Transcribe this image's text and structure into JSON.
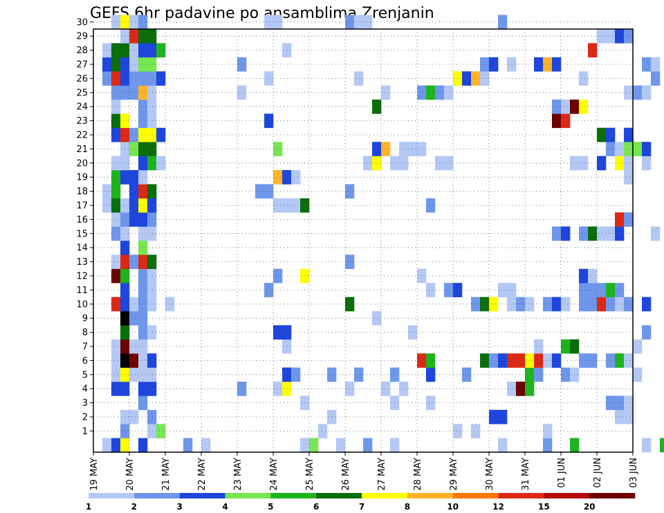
{
  "chart_data": {
    "type": "heatmap",
    "title": "GEFS 6hr padavine po ansamblima Zrenjanin",
    "x_ticks": [
      "19 MAY",
      "20 MAY",
      "21 MAY",
      "22 MAY",
      "23 MAY",
      "24 MAY",
      "25 MAY",
      "26 MAY",
      "27 MAY",
      "28 MAY",
      "29 MAY",
      "30 MAY",
      "31 MAY",
      "01 JUN",
      "02 JUN",
      "03 JUN"
    ],
    "x_steps_per_day": 4,
    "y_ticks": [
      1,
      2,
      3,
      4,
      5,
      6,
      7,
      8,
      9,
      10,
      11,
      12,
      13,
      14,
      15,
      16,
      17,
      18,
      19,
      20,
      21,
      22,
      23,
      24,
      25,
      26,
      27,
      28,
      29,
      30
    ],
    "ylim": [
      0,
      30
    ],
    "grid": true,
    "legend": {
      "position": "bottom",
      "labels": [
        "1",
        "2",
        "3",
        "4",
        "5",
        "6",
        "7",
        "8",
        "10",
        "12",
        "15",
        "20"
      ],
      "colors": [
        "#b4c8f5",
        "#6e96eb",
        "#1e46dc",
        "#78e650",
        "#1eb41e",
        "#0a6e0a",
        "#ffff00",
        "#ffb428",
        "#ff7800",
        "#dc2814",
        "#b40a0a",
        "#6e0000"
      ]
    },
    "cells": [
      [
        1,
        0,
        1
      ],
      [
        2,
        0,
        3
      ],
      [
        3,
        0,
        7
      ],
      [
        5,
        0,
        3
      ],
      [
        10,
        0,
        2
      ],
      [
        12,
        0,
        1
      ],
      [
        23,
        0,
        1
      ],
      [
        24,
        0,
        4
      ],
      [
        27,
        0,
        1
      ],
      [
        30,
        0,
        2
      ],
      [
        33,
        0,
        1
      ],
      [
        45,
        0,
        1
      ],
      [
        50,
        0,
        2
      ],
      [
        53,
        0,
        5
      ],
      [
        61,
        0,
        1
      ],
      [
        63,
        0,
        5
      ],
      [
        3,
        1,
        2
      ],
      [
        6,
        1,
        1
      ],
      [
        6,
        1,
        1
      ],
      [
        6,
        1,
        1
      ],
      [
        7,
        1,
        4
      ],
      [
        6,
        1,
        1
      ],
      [
        25,
        1,
        1
      ],
      [
        40,
        1,
        1
      ],
      [
        42,
        1,
        1
      ],
      [
        50,
        1,
        1
      ],
      [
        3,
        2,
        1
      ],
      [
        4,
        2,
        1
      ],
      [
        6,
        2,
        2
      ],
      [
        26,
        2,
        1
      ],
      [
        44,
        2,
        3
      ],
      [
        45,
        2,
        3
      ],
      [
        45,
        2,
        3
      ],
      [
        44,
        2,
        3
      ],
      [
        45,
        2,
        3
      ],
      [
        45,
        2,
        3
      ],
      [
        45,
        2,
        3
      ],
      [
        45,
        2,
        3
      ],
      [
        45,
        2,
        3
      ],
      [
        45,
        2,
        3
      ],
      [
        45,
        2,
        3
      ],
      [
        45,
        2,
        3
      ],
      [
        45,
        2,
        3
      ],
      [
        45,
        2,
        3
      ],
      [
        45,
        2,
        3
      ],
      [
        45,
        2,
        3
      ],
      [
        45,
        2,
        3
      ],
      [
        45,
        2,
        3
      ],
      [
        45,
        2,
        3
      ],
      [
        45,
        2,
        3
      ],
      [
        45,
        2,
        3
      ],
      [
        45,
        2,
        3
      ],
      [
        45,
        2,
        3
      ],
      [
        45,
        2,
        3
      ],
      [
        45,
        2,
        3
      ],
      [
        45,
        2,
        3
      ],
      [
        45,
        2,
        3
      ],
      [
        45,
        2,
        3
      ],
      [
        45,
        2,
        3
      ],
      [
        45,
        2,
        3
      ],
      [
        58,
        2,
        1
      ],
      [
        59,
        2,
        1
      ],
      [
        5,
        3,
        2
      ],
      [
        23,
        3,
        1
      ],
      [
        33,
        3,
        1
      ],
      [
        37,
        3,
        1
      ],
      [
        57,
        3,
        2
      ],
      [
        58,
        3,
        2
      ],
      [
        59,
        3,
        1
      ],
      [
        2,
        4,
        3
      ],
      [
        3,
        4,
        3
      ],
      [
        5,
        4,
        3
      ],
      [
        6,
        4,
        3
      ],
      [
        16,
        4,
        2
      ],
      [
        20,
        4,
        1
      ],
      [
        21,
        4,
        7
      ],
      [
        28,
        4,
        1
      ],
      [
        32,
        4,
        1
      ],
      [
        34,
        4,
        1
      ],
      [
        46,
        4,
        1
      ],
      [
        47,
        4,
        12
      ],
      [
        48,
        4,
        5
      ],
      [
        2,
        5,
        1
      ],
      [
        3,
        5,
        7
      ],
      [
        4,
        5,
        1
      ],
      [
        5,
        5,
        1
      ],
      [
        6,
        5,
        1
      ],
      [
        21,
        5,
        3
      ],
      [
        22,
        5,
        2
      ],
      [
        26,
        5,
        2
      ],
      [
        29,
        5,
        2
      ],
      [
        33,
        5,
        2
      ],
      [
        37,
        5,
        3
      ],
      [
        41,
        5,
        2
      ],
      [
        48,
        5,
        5
      ],
      [
        49,
        5,
        2
      ],
      [
        52,
        5,
        2
      ],
      [
        53,
        5,
        1
      ],
      [
        60,
        5,
        1
      ],
      [
        2,
        6,
        1
      ],
      [
        3,
        6,
        15
      ],
      [
        4,
        6,
        12
      ],
      [
        5,
        6,
        1
      ],
      [
        6,
        6,
        3
      ],
      [
        36,
        6,
        10
      ],
      [
        37,
        6,
        5
      ],
      [
        43,
        6,
        6
      ],
      [
        44,
        6,
        2
      ],
      [
        45,
        6,
        3
      ],
      [
        46,
        6,
        10
      ],
      [
        47,
        6,
        10
      ],
      [
        48,
        6,
        7
      ],
      [
        49,
        6,
        10
      ],
      [
        50,
        6,
        1
      ],
      [
        51,
        6,
        3
      ],
      [
        54,
        6,
        2
      ],
      [
        55,
        6,
        2
      ],
      [
        57,
        6,
        2
      ],
      [
        58,
        6,
        5
      ],
      [
        59,
        6,
        1
      ],
      [
        2,
        7,
        1
      ],
      [
        3,
        7,
        12
      ],
      [
        4,
        7,
        1
      ],
      [
        5,
        7,
        1
      ],
      [
        21,
        7,
        1
      ],
      [
        49,
        7,
        1
      ],
      [
        52,
        7,
        5
      ],
      [
        53,
        7,
        6
      ],
      [
        60,
        7,
        1
      ],
      [
        3,
        8,
        6
      ],
      [
        5,
        8,
        2
      ],
      [
        6,
        8,
        1
      ],
      [
        20,
        8,
        3
      ],
      [
        21,
        8,
        3
      ],
      [
        35,
        8,
        1
      ],
      [
        61,
        8,
        2
      ],
      [
        3,
        9,
        20
      ],
      [
        4,
        9,
        2
      ],
      [
        5,
        9,
        2
      ],
      [
        31,
        9,
        1
      ],
      [
        2,
        10,
        10
      ],
      [
        3,
        10,
        3
      ],
      [
        4,
        10,
        1
      ],
      [
        5,
        10,
        2
      ],
      [
        6,
        10,
        1
      ],
      [
        8,
        10,
        1
      ],
      [
        28,
        10,
        6
      ],
      [
        42,
        10,
        2
      ],
      [
        43,
        10,
        6
      ],
      [
        44,
        10,
        7
      ],
      [
        46,
        10,
        1
      ],
      [
        47,
        10,
        2
      ],
      [
        48,
        10,
        1
      ],
      [
        50,
        10,
        2
      ],
      [
        51,
        10,
        3
      ],
      [
        52,
        10,
        1
      ],
      [
        54,
        10,
        2
      ],
      [
        55,
        10,
        2
      ],
      [
        56,
        10,
        10
      ],
      [
        57,
        10,
        2
      ],
      [
        58,
        10,
        1
      ],
      [
        59,
        10,
        2
      ],
      [
        61,
        10,
        3
      ],
      [
        3,
        11,
        3
      ],
      [
        5,
        11,
        2
      ],
      [
        6,
        11,
        1
      ],
      [
        19,
        11,
        2
      ],
      [
        37,
        11,
        1
      ],
      [
        39,
        11,
        2
      ],
      [
        40,
        11,
        3
      ],
      [
        45,
        11,
        1
      ],
      [
        46,
        11,
        1
      ],
      [
        54,
        11,
        2
      ],
      [
        55,
        11,
        2
      ],
      [
        56,
        11,
        2
      ],
      [
        57,
        11,
        5
      ],
      [
        58,
        11,
        2
      ],
      [
        2,
        12,
        12
      ],
      [
        3,
        12,
        5
      ],
      [
        5,
        12,
        2
      ],
      [
        6,
        12,
        1
      ],
      [
        20,
        12,
        2
      ],
      [
        23,
        12,
        7
      ],
      [
        36,
        12,
        1
      ],
      [
        54,
        12,
        3
      ],
      [
        55,
        12,
        1
      ],
      [
        2,
        13,
        1
      ],
      [
        3,
        13,
        10
      ],
      [
        4,
        13,
        2
      ],
      [
        5,
        13,
        10
      ],
      [
        6,
        13,
        6
      ],
      [
        28,
        13,
        2
      ],
      [
        3,
        14,
        3
      ],
      [
        5,
        14,
        4
      ],
      [
        2,
        15,
        2
      ],
      [
        3,
        15,
        1
      ],
      [
        5,
        15,
        1
      ],
      [
        6,
        15,
        1
      ],
      [
        51,
        15,
        2
      ],
      [
        52,
        15,
        3
      ],
      [
        54,
        15,
        2
      ],
      [
        55,
        15,
        6
      ],
      [
        56,
        15,
        1
      ],
      [
        57,
        15,
        1
      ],
      [
        58,
        15,
        3
      ],
      [
        62,
        15,
        1
      ],
      [
        2,
        16,
        1
      ],
      [
        3,
        16,
        2
      ],
      [
        4,
        16,
        3
      ],
      [
        5,
        16,
        3
      ],
      [
        6,
        16,
        2
      ],
      [
        58,
        16,
        10
      ],
      [
        59,
        16,
        2
      ],
      [
        1,
        17,
        1
      ],
      [
        2,
        17,
        6
      ],
      [
        3,
        17,
        1
      ],
      [
        4,
        17,
        3
      ],
      [
        5,
        17,
        7
      ],
      [
        6,
        17,
        3
      ],
      [
        20,
        17,
        1
      ],
      [
        21,
        17,
        1
      ],
      [
        22,
        17,
        1
      ],
      [
        23,
        17,
        6
      ],
      [
        37,
        17,
        2
      ],
      [
        1,
        18,
        1
      ],
      [
        2,
        18,
        5
      ],
      [
        4,
        18,
        3
      ],
      [
        5,
        18,
        10
      ],
      [
        6,
        18,
        6
      ],
      [
        18,
        18,
        2
      ],
      [
        19,
        18,
        2
      ],
      [
        28,
        18,
        2
      ],
      [
        2,
        19,
        5
      ],
      [
        3,
        19,
        3
      ],
      [
        4,
        19,
        3
      ],
      [
        5,
        19,
        1
      ],
      [
        20,
        19,
        8
      ],
      [
        21,
        19,
        3
      ],
      [
        22,
        19,
        1
      ],
      [
        59,
        19,
        1
      ],
      [
        2,
        20,
        1
      ],
      [
        3,
        20,
        1
      ],
      [
        5,
        20,
        3
      ],
      [
        6,
        20,
        5
      ],
      [
        7,
        20,
        1
      ],
      [
        30,
        20,
        1
      ],
      [
        31,
        20,
        7
      ],
      [
        33,
        20,
        1
      ],
      [
        34,
        20,
        1
      ],
      [
        38,
        20,
        1
      ],
      [
        39,
        20,
        1
      ],
      [
        53,
        20,
        1
      ],
      [
        54,
        20,
        1
      ],
      [
        56,
        20,
        3
      ],
      [
        58,
        20,
        7
      ],
      [
        59,
        20,
        1
      ],
      [
        61,
        20,
        1
      ],
      [
        3,
        21,
        1
      ],
      [
        4,
        21,
        4
      ],
      [
        5,
        21,
        6
      ],
      [
        6,
        21,
        6
      ],
      [
        20,
        21,
        4
      ],
      [
        31,
        21,
        3
      ],
      [
        32,
        21,
        8
      ],
      [
        34,
        21,
        1
      ],
      [
        35,
        21,
        1
      ],
      [
        36,
        21,
        1
      ],
      [
        57,
        21,
        2
      ],
      [
        58,
        21,
        1
      ],
      [
        59,
        21,
        4
      ],
      [
        60,
        21,
        4
      ],
      [
        61,
        21,
        3
      ],
      [
        2,
        22,
        3
      ],
      [
        3,
        22,
        10
      ],
      [
        4,
        22,
        2
      ],
      [
        5,
        22,
        7
      ],
      [
        6,
        22,
        7
      ],
      [
        7,
        22,
        3
      ],
      [
        56,
        22,
        6
      ],
      [
        57,
        22,
        3
      ],
      [
        59,
        22,
        3
      ],
      [
        2,
        23,
        6
      ],
      [
        3,
        23,
        7
      ],
      [
        5,
        23,
        2
      ],
      [
        6,
        23,
        1
      ],
      [
        19,
        23,
        3
      ],
      [
        51,
        23,
        12
      ],
      [
        52,
        23,
        10
      ],
      [
        2,
        24,
        1
      ],
      [
        5,
        24,
        2
      ],
      [
        6,
        24,
        1
      ],
      [
        31,
        24,
        6
      ],
      [
        51,
        24,
        2
      ],
      [
        52,
        24,
        1
      ],
      [
        53,
        24,
        12
      ],
      [
        54,
        24,
        7
      ],
      [
        2,
        25,
        2
      ],
      [
        3,
        25,
        2
      ],
      [
        4,
        25,
        2
      ],
      [
        5,
        25,
        8
      ],
      [
        6,
        25,
        1
      ],
      [
        16,
        25,
        1
      ],
      [
        32,
        25,
        1
      ],
      [
        36,
        25,
        2
      ],
      [
        37,
        25,
        5
      ],
      [
        38,
        25,
        2
      ],
      [
        39,
        25,
        1
      ],
      [
        59,
        25,
        1
      ],
      [
        60,
        25,
        2
      ],
      [
        61,
        25,
        1
      ],
      [
        1,
        26,
        2
      ],
      [
        2,
        26,
        10
      ],
      [
        3,
        26,
        3
      ],
      [
        4,
        26,
        2
      ],
      [
        5,
        26,
        2
      ],
      [
        6,
        26,
        2
      ],
      [
        7,
        26,
        3
      ],
      [
        19,
        26,
        1
      ],
      [
        29,
        26,
        1
      ],
      [
        40,
        26,
        7
      ],
      [
        41,
        26,
        3
      ],
      [
        42,
        26,
        8
      ],
      [
        43,
        26,
        1
      ],
      [
        54,
        26,
        1
      ],
      [
        62,
        26,
        2
      ],
      [
        1,
        27,
        3
      ],
      [
        2,
        27,
        6
      ],
      [
        3,
        27,
        3
      ],
      [
        4,
        27,
        1
      ],
      [
        5,
        27,
        4
      ],
      [
        6,
        27,
        4
      ],
      [
        16,
        27,
        2
      ],
      [
        43,
        27,
        2
      ],
      [
        44,
        27,
        3
      ],
      [
        46,
        27,
        1
      ],
      [
        49,
        27,
        3
      ],
      [
        50,
        27,
        8
      ],
      [
        51,
        27,
        3
      ],
      [
        61,
        27,
        2
      ],
      [
        62,
        27,
        1
      ],
      [
        1,
        28,
        1
      ],
      [
        2,
        28,
        6
      ],
      [
        3,
        28,
        6
      ],
      [
        4,
        28,
        1
      ],
      [
        5,
        28,
        3
      ],
      [
        6,
        28,
        3
      ],
      [
        7,
        28,
        5
      ],
      [
        21,
        28,
        1
      ],
      [
        55,
        28,
        10
      ],
      [
        3,
        29,
        1
      ],
      [
        4,
        29,
        10
      ],
      [
        5,
        29,
        6
      ],
      [
        6,
        29,
        6
      ],
      [
        56,
        29,
        1
      ],
      [
        57,
        29,
        1
      ],
      [
        58,
        29,
        3
      ],
      [
        59,
        29,
        2
      ],
      [
        2,
        30,
        1
      ],
      [
        3,
        30,
        7
      ],
      [
        4,
        30,
        1
      ],
      [
        5,
        30,
        2
      ],
      [
        19,
        30,
        1
      ],
      [
        20,
        30,
        1
      ],
      [
        30,
        30,
        1
      ],
      [
        28,
        30,
        2
      ],
      [
        29,
        30,
        1
      ],
      [
        45,
        30,
        2
      ]
    ]
  }
}
